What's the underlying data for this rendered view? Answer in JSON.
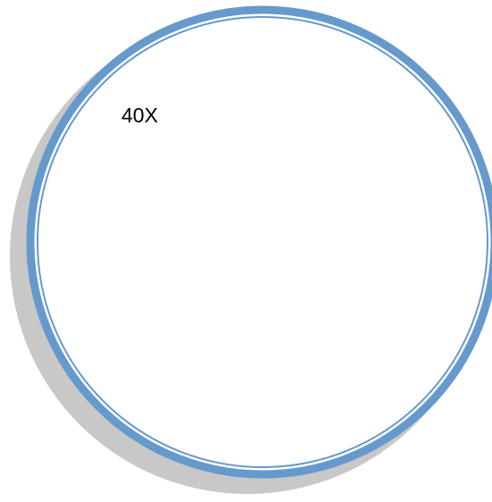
{
  "magnification_label": "40X",
  "colors": {
    "ring": "#6699cc",
    "shadow": "#c8c8c8",
    "fill": "#ffffff",
    "text": "#000000"
  }
}
